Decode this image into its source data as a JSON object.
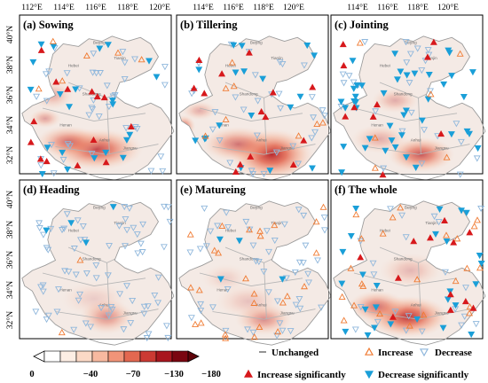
{
  "figure": {
    "panels": [
      {
        "id": "a",
        "title": "(a) Sowing",
        "hot": [
          [
            62,
            92,
            58,
            26,
            0.75
          ],
          [
            40,
            86,
            40,
            20,
            0.55
          ],
          [
            28,
            50,
            26,
            18,
            0.3
          ],
          [
            22,
            68,
            20,
            12,
            0.35
          ]
        ],
        "markers": {
          "inc_sig": 14,
          "inc": 6,
          "dec": 40,
          "dec_sig": 22
        }
      },
      {
        "id": "b",
        "title": "(b) Tillering",
        "hot": [
          [
            76,
            96,
            52,
            32,
            0.9
          ],
          [
            50,
            88,
            46,
            22,
            0.55
          ],
          [
            8,
            74,
            14,
            14,
            0.55
          ],
          [
            20,
            62,
            22,
            12,
            0.3
          ]
        ],
        "markers": {
          "inc_sig": 14,
          "inc": 8,
          "dec": 32,
          "dec_sig": 18
        }
      },
      {
        "id": "c",
        "title": "(c) Jointing",
        "hot": [
          [
            72,
            96,
            42,
            22,
            0.7
          ],
          [
            52,
            54,
            30,
            16,
            0.3
          ],
          [
            40,
            84,
            36,
            18,
            0.3
          ]
        ],
        "markers": {
          "inc_sig": 10,
          "inc": 6,
          "dec": 28,
          "dec_sig": 42
        }
      },
      {
        "id": "d",
        "title": "(d) Heading",
        "hot": [
          [
            70,
            94,
            34,
            22,
            0.45
          ],
          [
            60,
            80,
            42,
            22,
            0.15
          ]
        ],
        "markers": {
          "inc_sig": 0,
          "inc": 2,
          "dec": 70,
          "dec_sig": 4
        }
      },
      {
        "id": "e",
        "title": "(e) Matureing",
        "hot": [
          [
            70,
            96,
            36,
            20,
            0.45
          ],
          [
            58,
            82,
            42,
            22,
            0.2
          ],
          [
            40,
            64,
            30,
            18,
            0.15
          ]
        ],
        "markers": {
          "inc_sig": 0,
          "inc": 26,
          "dec": 48,
          "dec_sig": 4
        }
      },
      {
        "id": "f",
        "title": "(f) The whole",
        "hot": [
          [
            62,
            94,
            52,
            26,
            0.85
          ],
          [
            38,
            86,
            36,
            20,
            0.55
          ],
          [
            64,
            58,
            40,
            22,
            0.25
          ]
        ],
        "markers": {
          "inc_sig": 12,
          "inc": 24,
          "dec": 22,
          "dec_sig": 26
        }
      }
    ],
    "axes": {
      "lon_top_left": [
        "112°E",
        "114°E",
        "116°E",
        "118°E",
        "120°E"
      ],
      "lon_top_other": [
        "114°E",
        "116°E",
        "118°E",
        "120°E"
      ],
      "lat_top_row": [
        "40°N",
        "38°N",
        "36°N",
        "34°N",
        "32°N"
      ],
      "lat_bottom_row": [
        "40°N",
        "38°N",
        "36°N",
        "34°N",
        "32°N"
      ]
    },
    "regions": [
      "Beijing",
      "Tianjin",
      "Hebei",
      "Shandong",
      "Henan",
      "Anhui",
      "Jiangsu"
    ],
    "colorbar": {
      "colors": [
        "#ffffff",
        "#fdeee4",
        "#fbd9c6",
        "#f7b9a0",
        "#f19478",
        "#e36850",
        "#cc3a33",
        "#a8161e",
        "#7a0510"
      ],
      "left_extend_color": "#ffffff",
      "right_extend_color": "#5e0208",
      "ticks": [
        "0",
        "−40",
        "−70",
        "−130",
        "−180"
      ]
    },
    "legend": {
      "unchanged": "Unchanged",
      "increase": "Increase",
      "decrease": "Decrease",
      "increase_sig": "Increase significantly",
      "decrease_sig": "Decrease significantly"
    },
    "colors": {
      "increase_fill": "#d7191c",
      "increase_outline": "#f07b33",
      "decrease_fill": "#1a9fd8",
      "decrease_outline": "#8fb7dc",
      "map_fill": "#f4eae5",
      "map_border": "#9a9a9a",
      "frame": "#000000"
    }
  }
}
